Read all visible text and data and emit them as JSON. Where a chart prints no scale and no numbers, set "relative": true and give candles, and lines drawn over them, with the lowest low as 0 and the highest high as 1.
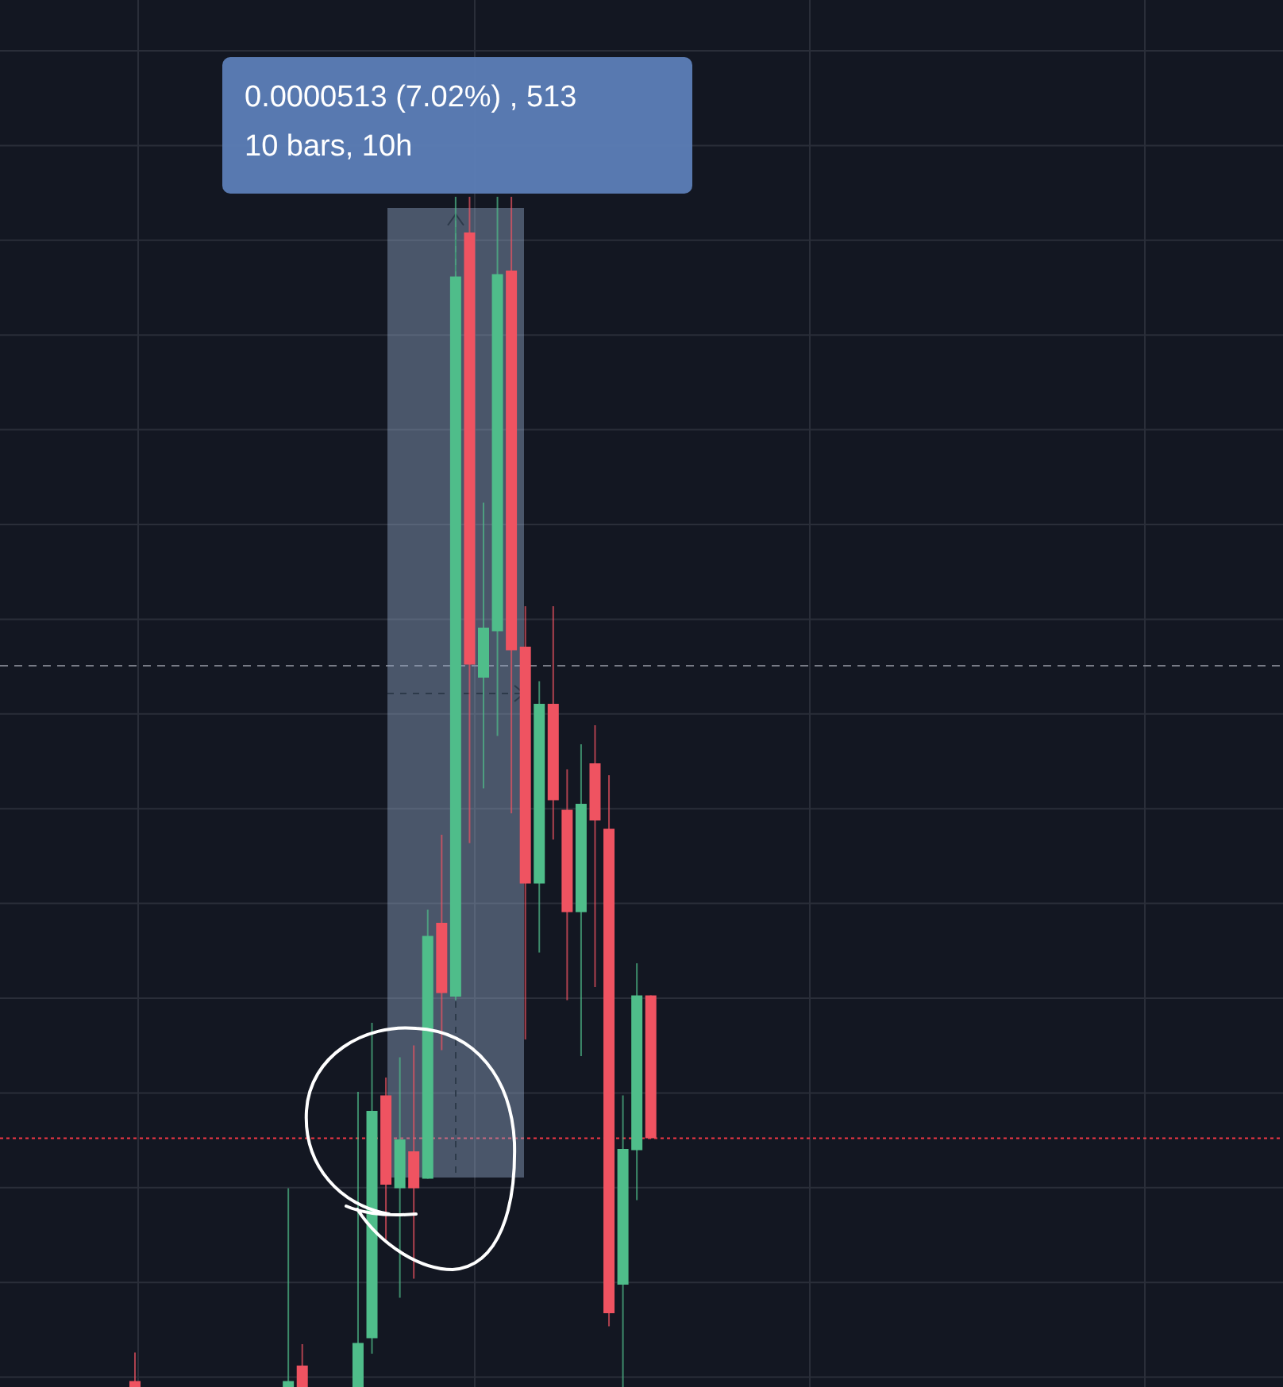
{
  "chart_data": {
    "type": "candlestick",
    "relative": true,
    "grid": true,
    "categories": [
      null,
      null,
      null,
      null,
      null,
      null,
      null,
      null,
      null,
      null,
      null,
      null,
      null,
      null,
      null,
      null,
      null,
      null,
      null,
      null,
      null,
      null,
      null,
      null,
      null,
      null,
      null,
      null,
      null,
      null,
      null,
      null,
      null,
      null,
      null,
      null,
      null,
      null
    ],
    "ohlc": [
      [
        0.005,
        0.029,
        0,
        0
      ],
      null,
      null,
      null,
      null,
      null,
      null,
      null,
      null,
      null,
      null,
      [
        0,
        0.167,
        0,
        0.005
      ],
      [
        0.018,
        0.036,
        0,
        0
      ],
      null,
      null,
      null,
      [
        0,
        0.248,
        0,
        0.037
      ],
      [
        0.041,
        0.306,
        0.028,
        0.232
      ],
      [
        0.245,
        0.26,
        0.124,
        0.17
      ],
      [
        0.167,
        0.277,
        0.075,
        0.208
      ],
      [
        0.198,
        0.287,
        0.091,
        0.167
      ],
      [
        0.175,
        0.401,
        0.175,
        0.379
      ],
      [
        0.39,
        0.464,
        0.283,
        0.331
      ],
      [
        0.328,
        1,
        0.325,
        0.933
      ],
      [
        0.97,
        1,
        0.457,
        0.607
      ],
      [
        0.596,
        0.743,
        0.503,
        0.638
      ],
      [
        0.635,
        1,
        0.547,
        0.935
      ],
      [
        0.938,
        1,
        0.482,
        0.619
      ],
      [
        0.622,
        0.656,
        0.292,
        0.423
      ],
      [
        0.423,
        0.593,
        0.365,
        0.574
      ],
      [
        0.574,
        0.656,
        0.46,
        0.493
      ],
      [
        0.485,
        0.519,
        0.325,
        0.399
      ],
      [
        0.399,
        0.54,
        0.278,
        0.49
      ],
      [
        0.524,
        0.556,
        0.336,
        0.476
      ],
      [
        0.469,
        0.514,
        0.051,
        0.062
      ],
      [
        0.086,
        0.245,
        0,
        0.2
      ],
      [
        0.199,
        0.356,
        0.157,
        0.329
      ],
      [
        0.329,
        0.329,
        0.209,
        0.209
      ]
    ],
    "colors": [
      "#ef5361",
      null,
      null,
      null,
      null,
      null,
      null,
      null,
      null,
      null,
      null,
      "#4fbd8a",
      "#ef5361",
      null,
      null,
      null,
      "#4fbd8a",
      "#4fbd8a",
      "#ef5361",
      "#4fbd8a",
      "#ef5361",
      "#4fbd8a",
      "#ef5361",
      "#4fbd8a",
      "#ef5361",
      "#4fbd8a",
      "#4fbd8a",
      "#ef5361",
      "#ef5361",
      "#4fbd8a",
      "#ef5361",
      "#ef5361",
      "#4fbd8a",
      "#ef5361",
      "#ef5361",
      "#4fbd8a",
      "#4fbd8a",
      "#ef5361"
    ],
    "ref_lines": [
      {
        "axis": "y",
        "value": 0.606,
        "color": "#787b86",
        "line_style": "dashed"
      },
      {
        "axis": "y",
        "value": 0.209,
        "color": "#f23645",
        "line_style": "dotted"
      }
    ],
    "annotations": [
      "0.0000513 (7.02%) , 513",
      "10 bars, 10h"
    ]
  }
}
